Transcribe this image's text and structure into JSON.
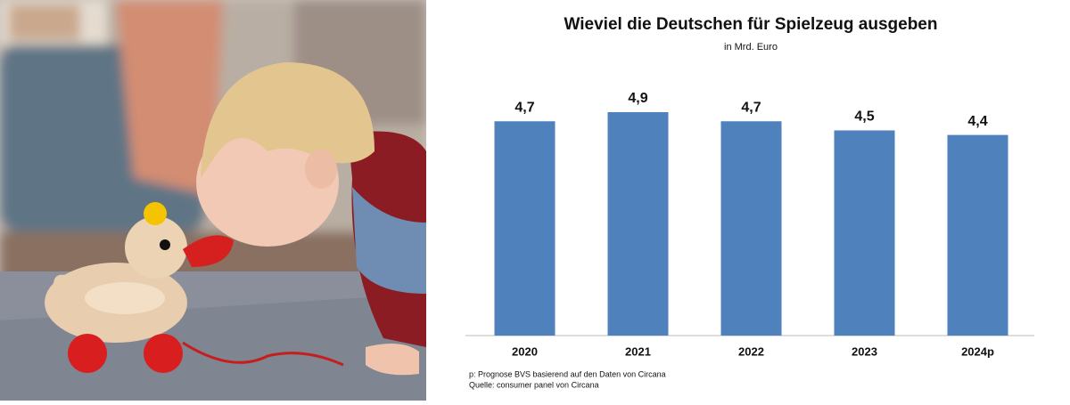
{
  "chart_data": {
    "type": "bar",
    "title": "Wieviel die Deutschen für Spielzeug ausgeben",
    "subtitle": "in Mrd. Euro",
    "categories": [
      "2020",
      "2021",
      "2022",
      "2023",
      "2024p"
    ],
    "values": [
      4.7,
      4.9,
      4.7,
      4.5,
      4.4
    ],
    "value_labels": [
      "4,7",
      "4,9",
      "4,7",
      "4,5",
      "4,4"
    ],
    "color": "#4f81bd",
    "notes": [
      "p: Prognose BVS basierend auf den Daten von Circana",
      "Quelle: consumer panel von Circana"
    ]
  }
}
